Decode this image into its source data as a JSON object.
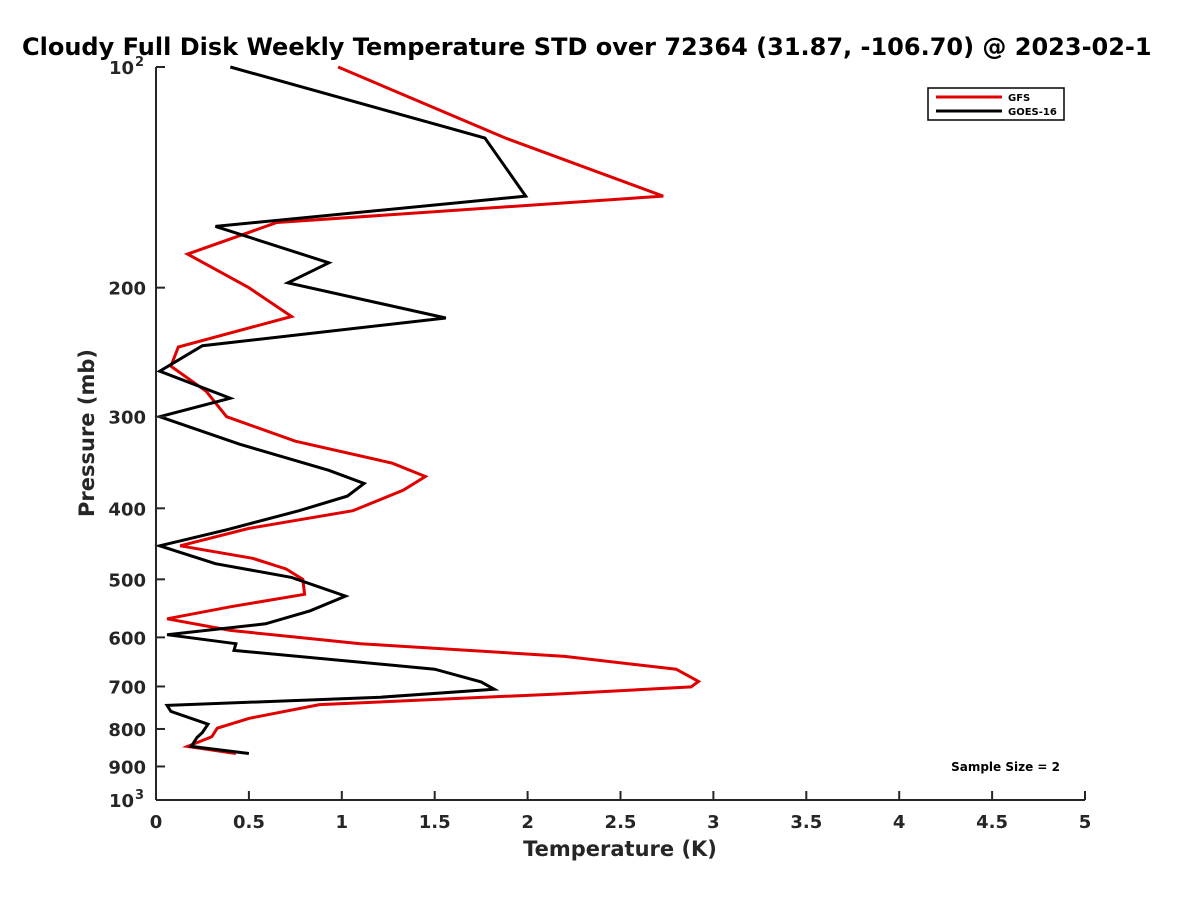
{
  "chart_data": {
    "type": "line",
    "title": "Cloudy Full Disk Weekly Temperature STD over 72364 (31.87, -106.70) @ 2023-02-1",
    "xlabel": "Temperature (K)",
    "ylabel": "Pressure (mb)",
    "xlim": [
      0,
      5
    ],
    "ylim": [
      100,
      1000
    ],
    "y_scale": "log",
    "y_reversed": true,
    "x_ticks": [
      "0",
      "0.5",
      "1",
      "1.5",
      "2",
      "2.5",
      "3",
      "3.5",
      "4",
      "4.5",
      "5"
    ],
    "y_ticks": [
      {
        "value": 100,
        "label": "10",
        "sup": "2"
      },
      {
        "value": 200,
        "label": "200",
        "sup": ""
      },
      {
        "value": 300,
        "label": "300",
        "sup": ""
      },
      {
        "value": 400,
        "label": "400",
        "sup": ""
      },
      {
        "value": 500,
        "label": "500",
        "sup": ""
      },
      {
        "value": 600,
        "label": "600",
        "sup": ""
      },
      {
        "value": 700,
        "label": "700",
        "sup": ""
      },
      {
        "value": 800,
        "label": "800",
        "sup": ""
      },
      {
        "value": 900,
        "label": "900",
        "sup": ""
      },
      {
        "value": 1000,
        "label": "10",
        "sup": "3"
      }
    ],
    "grid": false,
    "legend_position": "top-right",
    "annotation": "Sample Size = 2",
    "series": [
      {
        "name": "GFS",
        "color": "#e00000",
        "points": [
          [
            0.98,
            100
          ],
          [
            1.88,
            125
          ],
          [
            2.73,
            150
          ],
          [
            0.65,
            163
          ],
          [
            0.17,
            180
          ],
          [
            0.5,
            200
          ],
          [
            0.73,
            219
          ],
          [
            0.12,
            241
          ],
          [
            0.08,
            256
          ],
          [
            0.27,
            277
          ],
          [
            0.38,
            300
          ],
          [
            0.75,
            324
          ],
          [
            1.27,
            347
          ],
          [
            1.45,
            362
          ],
          [
            1.33,
            378
          ],
          [
            1.06,
            403
          ],
          [
            0.5,
            426
          ],
          [
            0.13,
            450
          ],
          [
            0.52,
            468
          ],
          [
            0.7,
            484
          ],
          [
            0.79,
            500
          ],
          [
            0.8,
            524
          ],
          [
            0.4,
            545
          ],
          [
            0.06,
            566
          ],
          [
            0.4,
            587
          ],
          [
            1.1,
            612
          ],
          [
            2.2,
            637
          ],
          [
            2.8,
            663
          ],
          [
            2.92,
            689
          ],
          [
            2.88,
            701
          ],
          [
            2.15,
            717
          ],
          [
            0.88,
            741
          ],
          [
            0.5,
            774
          ],
          [
            0.33,
            798
          ],
          [
            0.3,
            820
          ],
          [
            0.17,
            845
          ],
          [
            0.43,
            864
          ]
        ]
      },
      {
        "name": "GOES-16",
        "color": "#000000",
        "points": [
          [
            0.4,
            100
          ],
          [
            1.77,
            125
          ],
          [
            1.99,
            150
          ],
          [
            0.32,
            165
          ],
          [
            0.93,
            185
          ],
          [
            0.71,
            197
          ],
          [
            1.56,
            220
          ],
          [
            0.25,
            240
          ],
          [
            0.02,
            260
          ],
          [
            0.4,
            283
          ],
          [
            0.02,
            300
          ],
          [
            0.45,
            327
          ],
          [
            0.93,
            355
          ],
          [
            1.12,
            370
          ],
          [
            1.03,
            385
          ],
          [
            0.77,
            403
          ],
          [
            0.38,
            428
          ],
          [
            0.02,
            450
          ],
          [
            0.32,
            476
          ],
          [
            0.73,
            497
          ],
          [
            1.02,
            527
          ],
          [
            0.83,
            552
          ],
          [
            0.59,
            575
          ],
          [
            0.06,
            595
          ],
          [
            0.43,
            612
          ],
          [
            0.42,
            625
          ],
          [
            1.5,
            663
          ],
          [
            1.75,
            690
          ],
          [
            1.82,
            706
          ],
          [
            1.21,
            724
          ],
          [
            0.06,
            743
          ],
          [
            0.08,
            757
          ],
          [
            0.28,
            788
          ],
          [
            0.25,
            809
          ],
          [
            0.22,
            822
          ],
          [
            0.19,
            845
          ],
          [
            0.5,
            864
          ]
        ]
      }
    ]
  }
}
